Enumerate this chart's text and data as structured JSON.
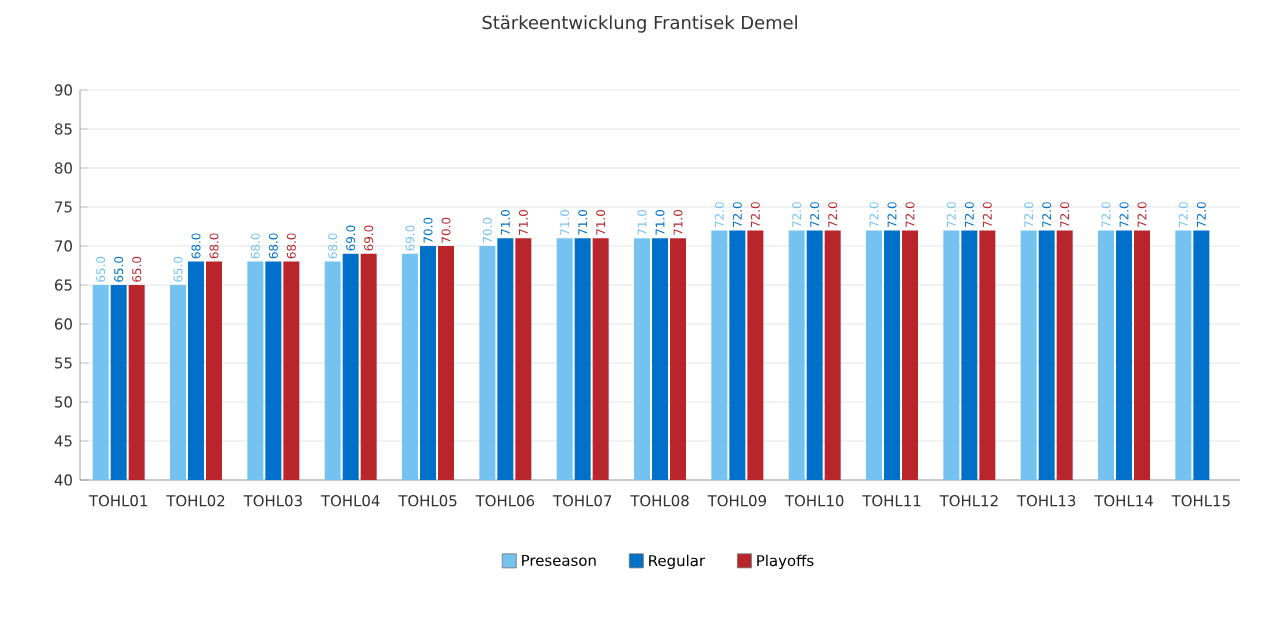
{
  "chart_data": {
    "type": "bar",
    "title": "Stärkeentwicklung Frantisek Demel",
    "categories": [
      "TOHL01",
      "TOHL02",
      "TOHL03",
      "TOHL04",
      "TOHL05",
      "TOHL06",
      "TOHL07",
      "TOHL08",
      "TOHL09",
      "TOHL10",
      "TOHL11",
      "TOHL12",
      "TOHL13",
      "TOHL14",
      "TOHL15"
    ],
    "series": [
      {
        "name": "Preseason",
        "color": "#74c2f0",
        "values": [
          65,
          65,
          68,
          68,
          69,
          70,
          71,
          71,
          72,
          72,
          72,
          72,
          72,
          72,
          72
        ],
        "value_labels": [
          "65.0",
          "65.0",
          "68.0",
          "68.0",
          "69.0",
          "70.0",
          "71.0",
          "71.0",
          "72.0",
          "72.0",
          "72.0",
          "72.0",
          "72.0",
          "72.0",
          "72.0"
        ]
      },
      {
        "name": "Regular",
        "color": "#0070c8",
        "values": [
          65,
          68,
          68,
          69,
          70,
          71,
          71,
          71,
          72,
          72,
          72,
          72,
          72,
          72,
          72
        ],
        "value_labels": [
          "65.0",
          "68.0",
          "68.0",
          "69.0",
          "70.0",
          "71.0",
          "71.0",
          "71.0",
          "72.0",
          "72.0",
          "72.0",
          "72.0",
          "72.0",
          "72.0",
          "72.0"
        ]
      },
      {
        "name": "Playoffs",
        "color": "#b8262b",
        "values": [
          65,
          68,
          68,
          69,
          70,
          71,
          71,
          71,
          72,
          72,
          72,
          72,
          72,
          72,
          null
        ],
        "value_labels": [
          "65.0",
          "68.0",
          "68.0",
          "69.0",
          "70.0",
          "71.0",
          "71.0",
          "71.0",
          "72.0",
          "72.0",
          "72.0",
          "72.0",
          "72.0",
          "72.0",
          null
        ]
      }
    ],
    "ylim": [
      40,
      90
    ],
    "yticks": [
      40,
      45,
      50,
      55,
      60,
      65,
      70,
      75,
      80,
      85,
      90
    ],
    "grid": "y",
    "legend": "bottom"
  }
}
